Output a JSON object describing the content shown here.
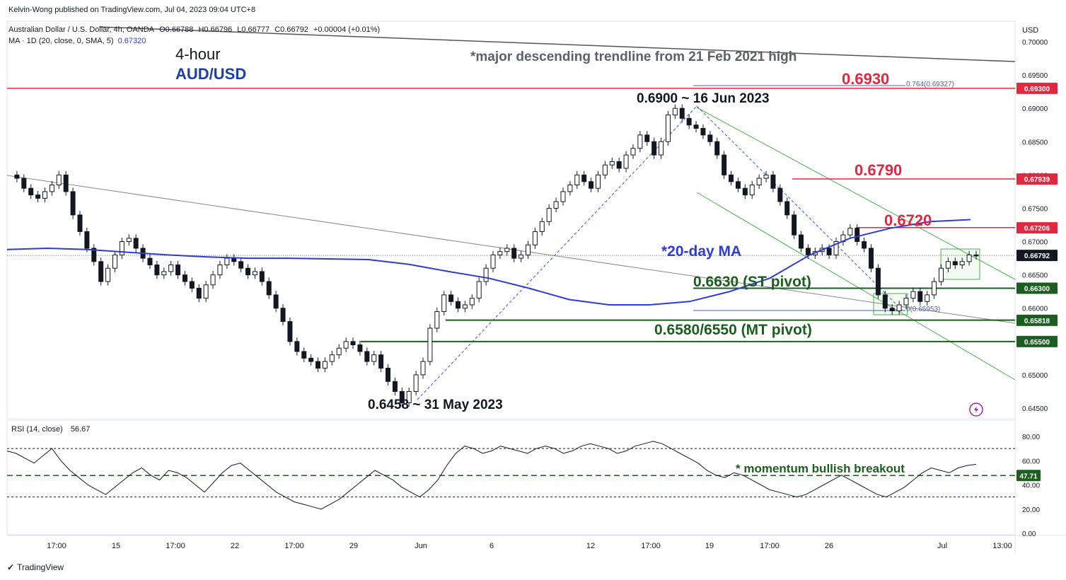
{
  "header": {
    "publisher": "Kelvin-Wong published on TradingView.com, Jul 04, 2023 09:04 UTC+8"
  },
  "legend": {
    "instrument": "Australian Dollar / U.S. Dollar, 4h, OANDA",
    "open": "O0.66788",
    "high": "H0.66796",
    "low": "L0.66777",
    "close": "C0.66792",
    "change": "+0.00004 (+0.01%)",
    "ma_label": "MA · 1D (20, close, 0, SMA, 5)",
    "ma_value": "0.67320"
  },
  "titles": {
    "timeframe": "4-hour",
    "pair": "AUD/USD"
  },
  "annotations": {
    "trendline_note": "*major descending trendline from 21 Feb 2021 high",
    "high_note": "0.6900 ~ 16 Jun 2023",
    "low_note": "0.6458 ~ 31 May 2023",
    "ma_note": "*20-day MA",
    "st_pivot": "0.6630 (ST pivot)",
    "mt_pivot": "0.6580/6550 (MT pivot)",
    "res_0930": "0.6930",
    "res_0790": "0.6790",
    "res_0720": "0.6720",
    "fib_764": "0.764(0.69327)",
    "fib_0": "0(0.65953)",
    "rsi_note": "* momentum bullish breakout"
  },
  "colors": {
    "resistance": "#e02840",
    "support": "#1b5e20",
    "ma": "#2e3bd4",
    "candle": "#131722",
    "channel": "#4caf50",
    "trendline": "#131722"
  },
  "chart_data": {
    "type": "candlestick",
    "title": "AUD/USD 4-hour",
    "currency": "USD",
    "ylim": [
      0.643,
      0.701
    ],
    "y_ticks": [
      "0.70000",
      "0.69500",
      "0.69000",
      "0.68500",
      "0.68000",
      "0.67500",
      "0.67000",
      "0.66500",
      "0.66000",
      "0.65500",
      "0.65000",
      "0.64500"
    ],
    "x_ticks": [
      "17:00",
      "15",
      "17:00",
      "22",
      "17:00",
      "29",
      "Jun",
      "6",
      "12",
      "17:00",
      "19",
      "17:00",
      "26",
      "Jul",
      "13:00"
    ],
    "price_path": [
      0.68,
      0.6795,
      0.678,
      0.677,
      0.6765,
      0.6775,
      0.6785,
      0.68,
      0.6775,
      0.674,
      0.6715,
      0.669,
      0.667,
      0.664,
      0.666,
      0.668,
      0.67,
      0.6705,
      0.669,
      0.6675,
      0.6665,
      0.665,
      0.6655,
      0.6665,
      0.665,
      0.664,
      0.663,
      0.6615,
      0.6635,
      0.665,
      0.6665,
      0.6675,
      0.667,
      0.666,
      0.665,
      0.6655,
      0.664,
      0.662,
      0.66,
      0.658,
      0.655,
      0.6535,
      0.6525,
      0.652,
      0.651,
      0.652,
      0.653,
      0.654,
      0.655,
      0.6545,
      0.6535,
      0.652,
      0.653,
      0.651,
      0.649,
      0.6475,
      0.6458,
      0.6475,
      0.65,
      0.652,
      0.657,
      0.6595,
      0.662,
      0.661,
      0.66,
      0.6605,
      0.6615,
      0.664,
      0.666,
      0.668,
      0.6685,
      0.669,
      0.6675,
      0.668,
      0.6695,
      0.6715,
      0.673,
      0.675,
      0.676,
      0.6775,
      0.6785,
      0.68,
      0.679,
      0.678,
      0.68,
      0.6815,
      0.682,
      0.681,
      0.683,
      0.684,
      0.686,
      0.685,
      0.683,
      0.685,
      0.689,
      0.69,
      0.6885,
      0.6875,
      0.687,
      0.686,
      0.685,
      0.683,
      0.68,
      0.679,
      0.678,
      0.677,
      0.6785,
      0.6795,
      0.68,
      0.678,
      0.676,
      0.674,
      0.671,
      0.669,
      0.668,
      0.6685,
      0.669,
      0.668,
      0.67,
      0.671,
      0.672,
      0.67,
      0.669,
      0.666,
      0.662,
      0.66,
      0.6596,
      0.6605,
      0.6615,
      0.6625,
      0.661,
      0.662,
      0.664,
      0.666,
      0.667,
      0.6665,
      0.667,
      0.668,
      0.6679
    ],
    "ma_20d": [
      0.6688,
      0.669,
      0.6688,
      0.6684,
      0.668,
      0.6677,
      0.6675,
      0.6675,
      0.6674,
      0.6673,
      0.6666,
      0.6655,
      0.6645,
      0.663,
      0.6613,
      0.6605,
      0.6605,
      0.661,
      0.6625,
      0.6645,
      0.668,
      0.6705,
      0.672,
      0.673,
      0.6733
    ],
    "levels": [
      0.693,
      0.6794,
      0.6721,
      0.663,
      0.6582,
      0.655
    ],
    "rsi": {
      "label": "RSI (14, close)",
      "value": "56.67",
      "ylim": [
        0,
        90
      ],
      "ticks": [
        "80.00",
        "60.00",
        "40.00",
        "20.00",
        "0.00"
      ],
      "bands": [
        70,
        30
      ],
      "breakout_level": 47.71,
      "values": [
        68,
        66,
        62,
        58,
        64,
        70,
        60,
        52,
        46,
        40,
        36,
        32,
        38,
        44,
        50,
        54,
        48,
        44,
        52,
        50,
        46,
        40,
        34,
        42,
        50,
        56,
        58,
        52,
        46,
        40,
        34,
        30,
        26,
        24,
        22,
        20,
        24,
        28,
        34,
        40,
        46,
        52,
        48,
        44,
        38,
        34,
        30,
        36,
        44,
        56,
        66,
        72,
        70,
        66,
        68,
        72,
        70,
        68,
        66,
        70,
        72,
        70,
        66,
        68,
        72,
        74,
        72,
        70,
        66,
        68,
        72,
        74,
        76,
        74,
        70,
        66,
        62,
        58,
        52,
        48,
        46,
        50,
        48,
        44,
        40,
        36,
        34,
        32,
        30,
        32,
        36,
        40,
        44,
        48,
        44,
        40,
        36,
        32,
        30,
        34,
        38,
        44,
        50,
        54,
        52,
        50,
        54,
        56,
        57
      ]
    },
    "price_badges": [
      "0.69300",
      "0.67939",
      "0.67206",
      "0.66792",
      "0.66300",
      "0.65818",
      "0.65500"
    ],
    "rsi_badge": "47.71"
  },
  "footer": {
    "brand": "TradingView"
  }
}
